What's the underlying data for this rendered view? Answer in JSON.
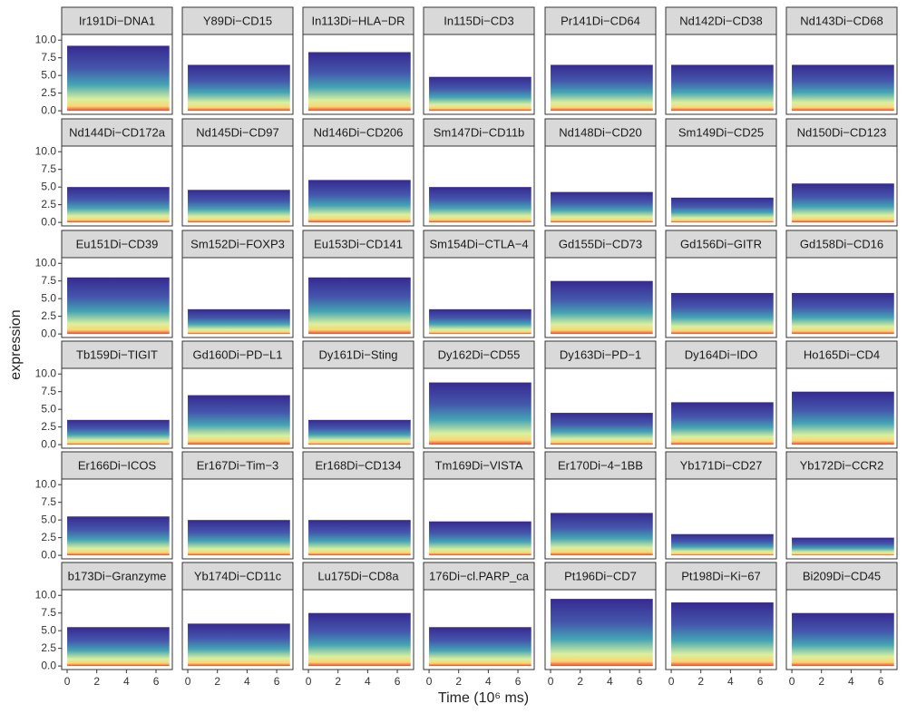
{
  "chart_data": {
    "type": "density-facets",
    "x_label": "Time (10⁶ ms)",
    "y_label": "expression",
    "xlim": [
      -0.37,
      7.1
    ],
    "xticks": [
      0,
      2,
      4,
      6
    ],
    "ylim": [
      -0.5,
      10.8
    ],
    "yticks": [
      {
        "value": 0,
        "label": "0.0"
      },
      {
        "value": 2.5,
        "label": "2.5"
      },
      {
        "value": 5,
        "label": "5.0"
      },
      {
        "value": 7.5,
        "label": "7.5"
      },
      {
        "value": 10,
        "label": "10.0"
      }
    ],
    "ncol": 7,
    "panels": [
      {
        "title": "Ir191Di−DNA1",
        "upper": 9.2
      },
      {
        "title": "Y89Di−CD15",
        "upper": 6.5
      },
      {
        "title": "In113Di−HLA−DR",
        "upper": 8.3
      },
      {
        "title": "In115Di−CD3",
        "upper": 4.8
      },
      {
        "title": "Pr141Di−CD64",
        "upper": 6.5
      },
      {
        "title": "Nd142Di−CD38",
        "upper": 6.5
      },
      {
        "title": "Nd143Di−CD68",
        "upper": 6.5
      },
      {
        "title": "Nd144Di−CD172a",
        "upper": 5.0
      },
      {
        "title": "Nd145Di−CD97",
        "upper": 4.6
      },
      {
        "title": "Nd146Di−CD206",
        "upper": 6.0
      },
      {
        "title": "Sm147Di−CD11b",
        "upper": 5.0
      },
      {
        "title": "Nd148Di−CD20",
        "upper": 4.3
      },
      {
        "title": "Sm149Di−CD25",
        "upper": 3.5
      },
      {
        "title": "Nd150Di−CD123",
        "upper": 5.5
      },
      {
        "title": "Eu151Di−CD39",
        "upper": 8.0
      },
      {
        "title": "Sm152Di−FOXP3",
        "upper": 3.5
      },
      {
        "title": "Eu153Di−CD141",
        "upper": 8.0
      },
      {
        "title": "Sm154Di−CTLA−4",
        "upper": 3.5
      },
      {
        "title": "Gd155Di−CD73",
        "upper": 7.5
      },
      {
        "title": "Gd156Di−GITR",
        "upper": 5.8
      },
      {
        "title": "Gd158Di−CD16",
        "upper": 5.8
      },
      {
        "title": "Tb159Di−TIGIT",
        "upper": 3.5
      },
      {
        "title": "Gd160Di−PD−L1",
        "upper": 7.0
      },
      {
        "title": "Dy161Di−Sting",
        "upper": 3.5
      },
      {
        "title": "Dy162Di−CD55",
        "upper": 8.8
      },
      {
        "title": "Dy163Di−PD−1",
        "upper": 4.5
      },
      {
        "title": "Dy164Di−IDO",
        "upper": 6.0
      },
      {
        "title": "Ho165Di−CD4",
        "upper": 7.5
      },
      {
        "title": "Er166Di−ICOS",
        "upper": 5.5
      },
      {
        "title": "Er167Di−Tim−3",
        "upper": 5.0
      },
      {
        "title": "Er168Di−CD134",
        "upper": 5.0
      },
      {
        "title": "Tm169Di−VISTA",
        "upper": 4.8
      },
      {
        "title": "Er170Di−4−1BB",
        "upper": 6.0
      },
      {
        "title": "Yb171Di−CD27",
        "upper": 3.0
      },
      {
        "title": "Yb172Di−CCR2",
        "upper": 2.5
      },
      {
        "title": "b173Di−Granzyme",
        "upper": 5.5
      },
      {
        "title": "Yb174Di−CD11c",
        "upper": 6.0
      },
      {
        "title": "Lu175Di−CD8a",
        "upper": 7.5
      },
      {
        "title": "176Di−cl.PARP_ca",
        "upper": 5.5
      },
      {
        "title": "Pt196Di−CD7",
        "upper": 9.5
      },
      {
        "title": "Pt198Di−Ki−67",
        "upper": 9.0
      },
      {
        "title": "Bi209Di−CD45",
        "upper": 7.5
      }
    ]
  }
}
